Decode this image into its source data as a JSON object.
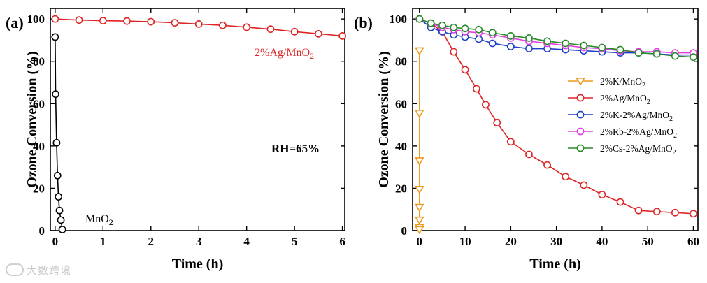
{
  "chart_data": [
    {
      "panel_label": "(a)",
      "type": "line",
      "xlabel": "Time (h)",
      "ylabel": "Ozone Conversion (%)",
      "xlim": [
        -0.1,
        6.05
      ],
      "ylim": [
        0,
        105
      ],
      "xticks": [
        0,
        1,
        2,
        3,
        4,
        5,
        6
      ],
      "yticks": [
        0,
        20,
        40,
        60,
        80,
        100
      ],
      "grid": false,
      "annotations": [
        {
          "id": "rh",
          "text": "RH=65%",
          "x": 4.35,
          "y": 40,
          "color": "#000000",
          "bold": true
        },
        {
          "id": "ag",
          "text": "2%Ag/MnO",
          "sub": "2",
          "x": 4.95,
          "y": 85,
          "color": "#dd2525",
          "bold": false
        },
        {
          "id": "mn",
          "text": "MnO",
          "sub": "2",
          "x": 0.28,
          "y": 3,
          "color": "#000000",
          "bold": false
        }
      ],
      "series": [
        {
          "name": "2%Ag/MnO2",
          "color": "#dd2525",
          "marker": "circle",
          "x": [
            0,
            0.5,
            1,
            1.5,
            2,
            2.5,
            3,
            3.5,
            4,
            4.5,
            5,
            5.5,
            6
          ],
          "y": [
            100,
            99.5,
            99.2,
            99,
            98.7,
            98.2,
            97.6,
            97,
            96.1,
            95.2,
            94,
            93,
            92
          ]
        },
        {
          "name": "MnO2",
          "color": "#000000",
          "marker": "circle",
          "x": [
            0,
            0.01,
            0.03,
            0.05,
            0.07,
            0.09,
            0.12,
            0.15
          ],
          "y": [
            91.5,
            64.5,
            41.5,
            26,
            16,
            9.5,
            5,
            0.5
          ]
        }
      ]
    },
    {
      "panel_label": "(b)",
      "type": "line",
      "xlabel": "Time (h)",
      "ylabel": "Ozone Conversion (%)",
      "xlim": [
        -1.5,
        61
      ],
      "ylim": [
        0,
        105
      ],
      "xticks": [
        0,
        10,
        20,
        30,
        40,
        50,
        60
      ],
      "yticks": [
        0,
        20,
        40,
        60,
        80,
        100
      ],
      "grid": false,
      "legend": {
        "position": "center-right",
        "entries": [
          {
            "series": "2%K/MnO2",
            "text": "2%K/MnO",
            "sub": "2"
          },
          {
            "series": "2%Ag/MnO2",
            "text": "2%Ag/MnO",
            "sub": "2"
          },
          {
            "series": "2%K-2%Ag/MnO2",
            "text": "2%K-2%Ag/MnO",
            "sub": "2"
          },
          {
            "series": "2%Rb-2%Ag/MnO2",
            "text": "2%Rb-2%Ag/MnO",
            "sub": "2"
          },
          {
            "series": "2%Cs-2%Ag/MnO2",
            "text": "2%Cs-2%Ag/MnO",
            "sub": "2"
          }
        ]
      },
      "series": [
        {
          "name": "2%K/MnO2",
          "color": "#ef9b1f",
          "marker": "triangle-down",
          "x": [
            0,
            0,
            0,
            0,
            0,
            0,
            0,
            0
          ],
          "y": [
            85,
            55.5,
            33,
            19.5,
            11,
            5,
            1.5,
            0.5
          ]
        },
        {
          "name": "2%Ag/MnO2",
          "color": "#dd2525",
          "marker": "circle",
          "x": [
            0,
            2.5,
            5,
            7.5,
            10,
            12.5,
            14.5,
            17,
            20,
            24,
            28,
            32,
            36,
            40,
            44,
            48,
            52,
            56,
            60
          ],
          "y": [
            100,
            98,
            94,
            84.5,
            76,
            67,
            59.5,
            51,
            42,
            36,
            31,
            25.5,
            21.5,
            17,
            13.5,
            9.5,
            9,
            8.5,
            8
          ]
        },
        {
          "name": "2%K-2%Ag/MnO2",
          "color": "#1f3fc6",
          "marker": "circle",
          "x": [
            0,
            2.5,
            5,
            7.5,
            10,
            13,
            16,
            20,
            24,
            28,
            32,
            36,
            40,
            44,
            48,
            52,
            56,
            60
          ],
          "y": [
            100,
            96,
            94,
            92.5,
            91.5,
            90.5,
            88.5,
            87,
            86,
            86,
            85.5,
            85,
            84.5,
            84,
            84,
            83.5,
            83,
            83
          ]
        },
        {
          "name": "2%Rb-2%Ag/MnO2",
          "color": "#e040e0",
          "marker": "circle",
          "x": [
            0,
            2.5,
            5,
            7.5,
            10,
            13,
            16,
            20,
            24,
            28,
            32,
            36,
            40,
            44,
            48,
            52,
            56,
            60
          ],
          "y": [
            100,
            98,
            96,
            95,
            94,
            93.5,
            92.5,
            91,
            89.5,
            88.5,
            87.5,
            86.5,
            86,
            85,
            84.5,
            84.5,
            84,
            84
          ]
        },
        {
          "name": "2%Cs-2%Ag/MnO2",
          "color": "#2a8a2a",
          "marker": "circle",
          "x": [
            0,
            2.5,
            5,
            7.5,
            10,
            13,
            16,
            20,
            24,
            28,
            32,
            36,
            40,
            44,
            48,
            52,
            56,
            60
          ],
          "y": [
            100,
            98,
            97,
            96,
            95.5,
            95,
            93.5,
            92,
            91,
            89.5,
            88.5,
            87.5,
            86.5,
            85.5,
            84,
            83.5,
            82.5,
            82
          ]
        }
      ]
    }
  ],
  "watermark": {
    "text": "大数跨境"
  }
}
